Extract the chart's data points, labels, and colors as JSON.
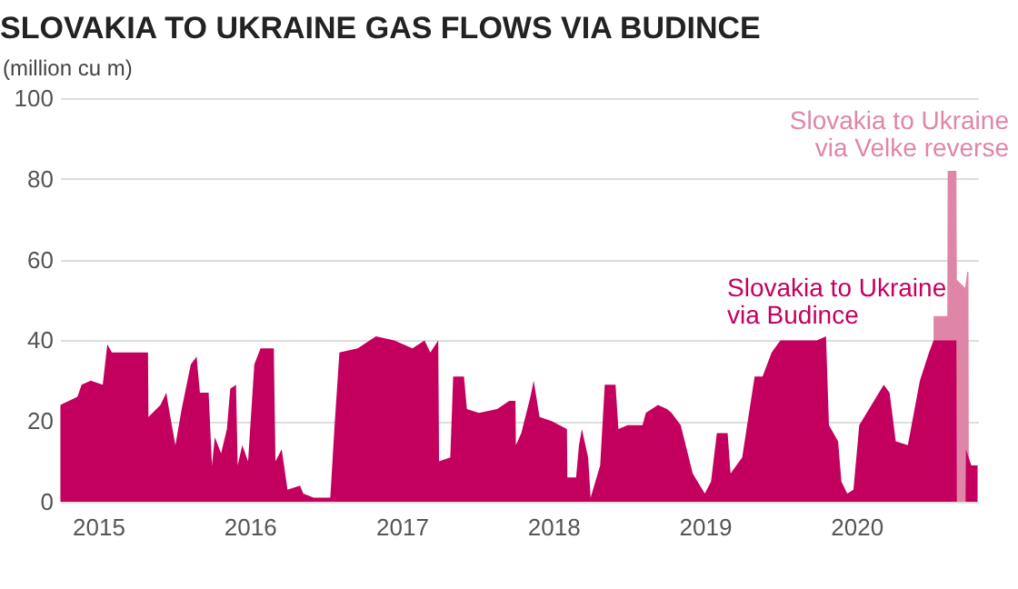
{
  "chart_data": {
    "type": "area",
    "title": "SLOVAKIA TO UKRAINE GAS FLOWS VIA BUDINCE",
    "ylabel": "(million cu m)",
    "xlim": [
      "2014-10-01",
      "2020-10-20"
    ],
    "xticks": [
      "2015",
      "2016",
      "2017",
      "2018",
      "2019",
      "2020"
    ],
    "ylim": [
      0,
      100
    ],
    "yticks": [
      0,
      20,
      40,
      60,
      80,
      100
    ],
    "grid": "y",
    "legend": false,
    "series": [
      {
        "name": "Slovakia to Ukraine via Velke reverse",
        "color": "#df86a8",
        "x": [
          "2020-07-04",
          "2020-07-05",
          "2020-08-07",
          "2020-08-08",
          "2020-08-29",
          "2020-08-30",
          "2020-09-19",
          "2020-09-24",
          "2020-09-27",
          "2020-09-28"
        ],
        "values": [
          0,
          46,
          46,
          82,
          82,
          55,
          53,
          57,
          57,
          0
        ]
      },
      {
        "name": "Slovakia to Ukraine via Budince",
        "color": "#c4005f",
        "x": [
          "2014-10-02",
          "2014-11-12",
          "2014-11-22",
          "2014-12-14",
          "2015-01-12",
          "2015-01-23",
          "2015-02-03",
          "2015-05-01",
          "2015-05-02",
          "2015-05-31",
          "2015-06-14",
          "2015-06-22",
          "2015-07-06",
          "2015-07-21",
          "2015-08-12",
          "2015-08-26",
          "2015-09-03",
          "2015-09-24",
          "2015-10-02",
          "2015-10-09",
          "2015-10-24",
          "2015-11-07",
          "2015-11-15",
          "2015-11-29",
          "2015-12-03",
          "2015-12-14",
          "2015-12-28",
          "2016-01-12",
          "2016-01-27",
          "2016-02-28",
          "2016-03-03",
          "2016-03-18",
          "2016-04-01",
          "2016-05-01",
          "2016-05-09",
          "2016-06-03",
          "2016-07-13",
          "2016-07-24",
          "2016-08-04",
          "2016-09-17",
          "2016-10-31",
          "2016-12-14",
          "2017-01-27",
          "2017-02-25",
          "2017-03-11",
          "2017-03-30",
          "2017-04-01",
          "2017-04-28",
          "2017-05-05",
          "2017-05-31",
          "2017-06-07",
          "2017-07-06",
          "2017-08-19",
          "2017-09-17",
          "2017-10-02",
          "2017-10-03",
          "2017-10-16",
          "2017-11-07",
          "2017-11-15",
          "2017-11-29",
          "2017-12-28",
          "2018-02-03",
          "2018-02-04",
          "2018-02-25",
          "2018-03-04",
          "2018-03-11",
          "2018-03-26",
          "2018-04-01",
          "2018-04-24",
          "2018-05-05",
          "2018-05-31",
          "2018-06-07",
          "2018-06-29",
          "2018-08-04",
          "2018-08-12",
          "2018-09-10",
          "2018-10-02",
          "2018-10-13",
          "2018-11-04",
          "2018-12-03",
          "2019-01-01",
          "2019-01-16",
          "2019-01-30",
          "2019-02-25",
          "2019-03-04",
          "2019-04-01",
          "2019-05-01",
          "2019-05-20",
          "2019-06-11",
          "2019-07-02",
          "2019-09-28",
          "2019-10-20",
          "2019-10-27",
          "2019-11-18",
          "2019-11-26",
          "2019-12-10",
          "2019-12-25",
          "2020-01-08",
          "2020-03-07",
          "2020-03-21",
          "2020-04-05",
          "2020-05-04",
          "2020-06-02",
          "2020-06-24",
          "2020-07-05",
          "2020-08-29",
          "2020-08-30",
          "2020-09-20",
          "2020-09-21",
          "2020-10-04",
          "2020-10-19"
        ],
        "values": [
          24,
          26,
          29,
          30,
          29,
          39,
          37,
          37,
          21,
          24,
          27,
          22,
          14,
          23,
          34,
          36,
          27,
          27,
          9,
          16,
          12,
          18,
          28,
          29,
          9,
          14,
          10,
          34,
          38,
          38,
          10,
          13,
          3,
          4,
          2,
          1,
          1,
          20,
          37,
          38,
          41,
          40,
          38,
          40,
          37,
          40,
          10,
          11,
          31,
          31,
          23,
          22,
          23,
          25,
          25,
          14,
          17,
          26,
          30,
          21,
          20,
          18,
          6,
          6,
          14,
          18,
          11,
          1,
          9,
          29,
          29,
          18,
          19,
          19,
          22,
          24,
          23,
          22,
          19,
          7,
          2,
          5,
          17,
          17,
          7,
          11,
          31,
          31,
          37,
          40,
          40,
          41,
          19,
          15,
          5,
          2,
          3,
          19,
          29,
          27,
          15,
          14,
          30,
          37,
          40,
          40,
          0,
          0,
          13,
          9,
          9
        ]
      }
    ]
  }
}
